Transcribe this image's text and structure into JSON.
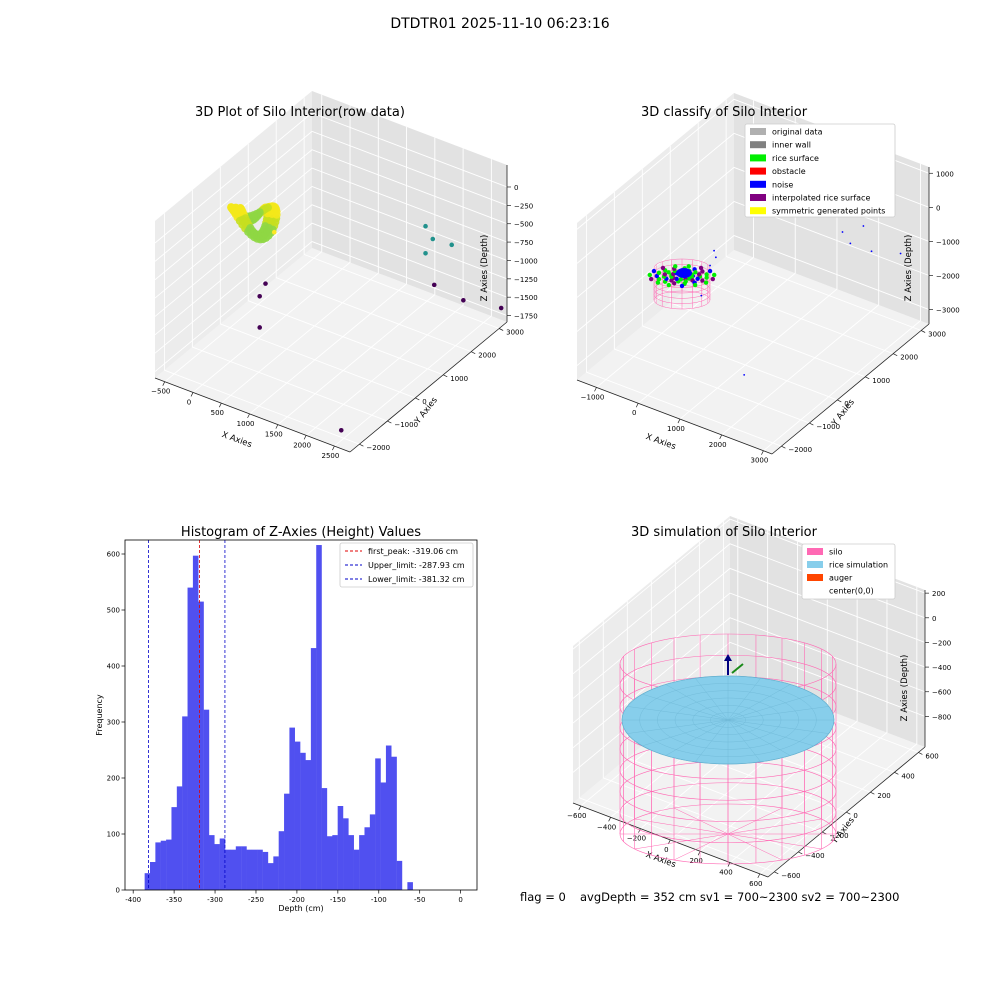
{
  "figure": {
    "suptitle": "DTDTR01 2025-11-10 06:23:16",
    "footer": {
      "flag": "flag = 0",
      "stats": "avgDepth = 352 cm  sv1 = 700~2300  sv2 = 700~2300"
    }
  },
  "colors": {
    "hist_bar": "#5050f0",
    "first_peak": "#e00000",
    "limit": "#0000c8",
    "grid_pane_left": "#ececec",
    "grid_pane_right": "#e2e2e2",
    "grid_pane_floor": "#f2f2f2",
    "silo": "#ff69b4",
    "rice": "#87ceeb",
    "auger": "#ff4500"
  },
  "chart_data": [
    {
      "type": "scatter3d",
      "title": "3D Plot of Silo Interior(row data)",
      "xlabel": "X Axies",
      "ylabel": "Y Axies",
      "zlabel": "Z Axies (Depth)",
      "x_ticks": [
        "−500",
        "0",
        "500",
        "1000",
        "1500",
        "2000",
        "2500"
      ],
      "y_ticks": [
        "−2000",
        "−1000",
        "0",
        "1000",
        "2000",
        "3000"
      ],
      "z_ticks": [
        "0",
        "−250",
        "−500",
        "−750",
        "−1000",
        "−1250",
        "−1500",
        "−1750"
      ],
      "xlim": [
        -650,
        2700
      ],
      "ylim": [
        -2100,
        3300
      ],
      "zlim": [
        -1900,
        100
      ],
      "cluster": {
        "x_range": [
          -350,
          350
        ],
        "y_range": [
          -350,
          350
        ],
        "z_range": [
          -450,
          -200
        ],
        "color_scale": "viridis"
      },
      "points": [
        {
          "x": 2400,
          "y": -1800,
          "z": -1800
        },
        {
          "x": 1650,
          "y": 2900,
          "z": -1600
        },
        {
          "x": 2100,
          "y": 3000,
          "z": -1700
        },
        {
          "x": 2600,
          "y": 3300,
          "z": -1750
        },
        {
          "x": 1600,
          "y": 2700,
          "z": -1150
        },
        {
          "x": 1650,
          "y": 2850,
          "z": -1000
        },
        {
          "x": 1550,
          "y": 2800,
          "z": -850
        },
        {
          "x": 1900,
          "y": 3000,
          "z": -1050
        },
        {
          "x": 200,
          "y": -200,
          "z": -1600
        },
        {
          "x": -300,
          "y": 800,
          "z": -1650
        },
        {
          "x": -300,
          "y": 1000,
          "z": -1550
        },
        {
          "x": 300,
          "y": 100,
          "z": -450
        }
      ]
    },
    {
      "type": "scatter3d",
      "title": "3D classify of Silo Interior",
      "xlabel": "X Axies",
      "ylabel": "Y Axies",
      "zlabel": "Z Axies (Depth)",
      "x_ticks": [
        "−1000",
        "0",
        "1000",
        "2000",
        "3000"
      ],
      "y_ticks": [
        "−2000",
        "−1000",
        "0",
        "1000",
        "2000",
        "3000"
      ],
      "z_ticks": [
        "1000",
        "0",
        "−1000",
        "−2000",
        "−3000"
      ],
      "xlim": [
        -1500,
        3300
      ],
      "ylim": [
        -2100,
        3300
      ],
      "zlim": [
        -3500,
        1100
      ],
      "legend": [
        {
          "label": "original data",
          "color": "#b0b0b0"
        },
        {
          "label": "inner wall",
          "color": "#808080"
        },
        {
          "label": "rice surface",
          "color": "#00ee00"
        },
        {
          "label": "obstacle",
          "color": "#ff0000"
        },
        {
          "label": "noise",
          "color": "#0000ff"
        },
        {
          "label": "interpolated rice surface",
          "color": "#800080"
        },
        {
          "label": "symmetric generated points",
          "color": "#ffff00"
        }
      ],
      "legend_loc": "upper right",
      "noise_points": [
        {
          "x": 2400,
          "y": -1800,
          "z": -1800
        },
        {
          "x": 1650,
          "y": 2900,
          "z": -1600
        },
        {
          "x": 2100,
          "y": 3000,
          "z": -1700
        },
        {
          "x": 2600,
          "y": 3300,
          "z": -1750
        },
        {
          "x": 1600,
          "y": 2700,
          "z": -1150
        },
        {
          "x": 1900,
          "y": 3000,
          "z": -1050
        },
        {
          "x": 200,
          "y": -200,
          "z": -1600
        },
        {
          "x": -300,
          "y": 800,
          "z": -1650
        },
        {
          "x": -300,
          "y": 1000,
          "z": -1550
        },
        {
          "x": 300,
          "y": 100,
          "z": -450
        }
      ]
    },
    {
      "type": "bar",
      "title": "Histogram of Z-Axies (Height) Values",
      "xlabel": "Depth (cm)",
      "ylabel": "Frequency",
      "xlim": [
        -410,
        20
      ],
      "ylim": [
        0,
        625
      ],
      "x_ticks": [
        -400,
        -350,
        -300,
        -250,
        -200,
        -150,
        -100,
        -50,
        0
      ],
      "y_ticks": [
        0,
        100,
        200,
        300,
        400,
        500,
        600
      ],
      "bin_start": -386,
      "bin_width": 6.55,
      "values": [
        30,
        50,
        85,
        88,
        90,
        148,
        185,
        310,
        540,
        597,
        515,
        322,
        98,
        82,
        92,
        72,
        72,
        78,
        78,
        72,
        72,
        72,
        68,
        48,
        60,
        105,
        172,
        290,
        265,
        245,
        232,
        432,
        616,
        182,
        96,
        98,
        150,
        128,
        98,
        72,
        98,
        112,
        135,
        235,
        192,
        258,
        238,
        52,
        0,
        14
      ],
      "lines": [
        {
          "name": "first_peak",
          "label": "first_peak: -319.06 cm",
          "x": -319.06,
          "style": "red"
        },
        {
          "name": "upper_limit",
          "label": "Upper_limit: -287.93 cm",
          "x": -287.93,
          "style": "blue"
        },
        {
          "name": "lower_limit",
          "label": "Lower_limit: -381.32 cm",
          "x": -381.32,
          "style": "blue"
        }
      ],
      "legend_loc": "upper right"
    },
    {
      "type": "surface3d",
      "title": "3D simulation of Silo Interior",
      "xlabel": "X Axies",
      "ylabel": "Y Axies",
      "zlabel": "Z Axies (Depth)",
      "x_ticks": [
        "−600",
        "−400",
        "−200",
        "0",
        "200",
        "400",
        "600"
      ],
      "y_ticks": [
        "−600",
        "−400",
        "−200",
        "0",
        "200",
        "400",
        "600"
      ],
      "z_ticks": [
        "200",
        "0",
        "−200",
        "−400",
        "−600",
        "−800"
      ],
      "xlim": [
        -650,
        650
      ],
      "ylim": [
        -650,
        650
      ],
      "zlim": [
        -1000,
        300
      ],
      "silo": {
        "radius": 600,
        "z_top": 0,
        "z_bottom": -1000
      },
      "rice_surface": {
        "radius": 600,
        "mean_depth": -352
      },
      "legend": [
        {
          "label": "silo",
          "color": "#ff69b4"
        },
        {
          "label": "rice simulation",
          "color": "#87ceeb"
        },
        {
          "label": "auger",
          "color": "#ff4500"
        },
        {
          "label": "center(0,0)",
          "color": ""
        }
      ],
      "legend_loc": "upper right"
    }
  ]
}
